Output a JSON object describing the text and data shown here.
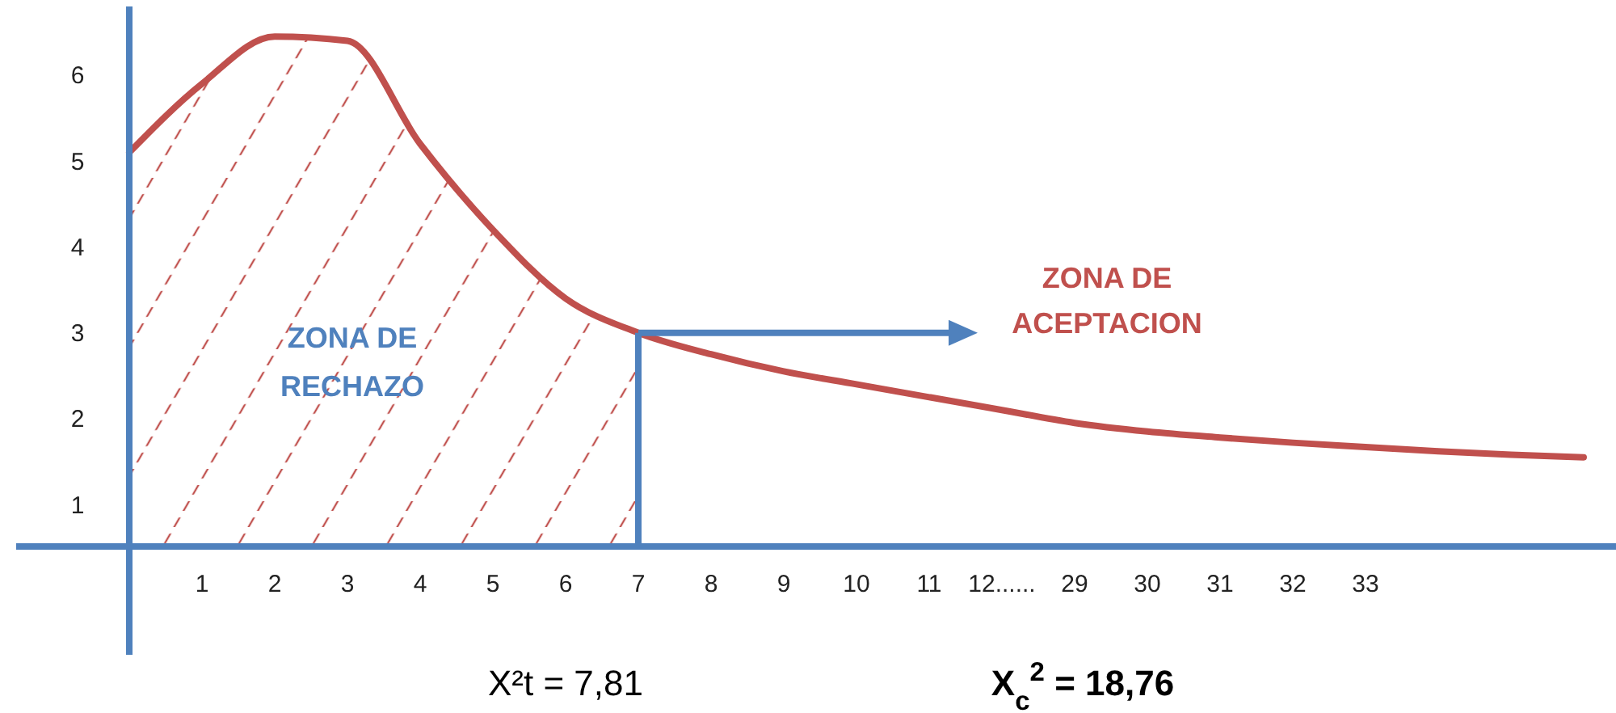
{
  "chart_data": {
    "type": "line",
    "categories": [
      null,
      "1",
      "2",
      "3",
      "4",
      "5",
      "6",
      "7",
      "8",
      "9",
      "10",
      "11",
      "12......",
      "29",
      "30",
      "31",
      "32",
      "33",
      null,
      null,
      null
    ],
    "series": [
      {
        "type": "area",
        "color": "#c0504d",
        "values": [
          5.1,
          5.9,
          6.45,
          6.4,
          5.2,
          4.2,
          3.4,
          3.0,
          null,
          null,
          null,
          null,
          null,
          null,
          null,
          null,
          null,
          null,
          null,
          null,
          null
        ]
      },
      {
        "color": "#c0504d",
        "values": [
          5.1,
          5.9,
          6.45,
          6.4,
          5.2,
          4.2,
          3.4,
          3.0,
          2.75,
          2.55,
          2.4,
          2.25,
          2.1,
          1.95,
          1.85,
          1.78,
          1.72,
          1.67,
          1.62,
          1.58,
          1.55
        ]
      }
    ],
    "ylim": [
      -0.75,
      6.8
    ],
    "yticks": [
      1,
      2,
      3,
      4,
      5,
      6
    ],
    "ref_lines": [
      {
        "axis": "x",
        "value": "7",
        "color": "#4f81bd"
      }
    ],
    "annotations": [
      "ZONA DE ACEPTACION",
      "X²t = 7,81",
      "X$_{c}$$^{2}$ = 18,76",
      "ZONA DE RECHAZO"
    ],
    "marker": "none",
    "line_style": "solid"
  }
}
